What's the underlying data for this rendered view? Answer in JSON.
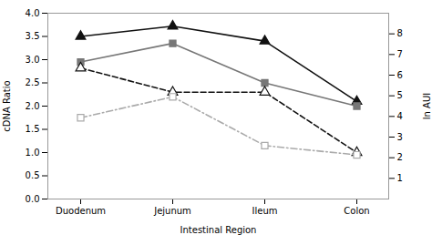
{
  "chart_data": {
    "type": "line",
    "categories": [
      "Duodenum",
      "Jejunum",
      "Ileum",
      "Colon"
    ],
    "series": [
      {
        "color": "#111111",
        "values": [
          3.5,
          3.72,
          3.4,
          2.1
        ],
        "marker": "triangle",
        "line_style": "solid"
      },
      {
        "color": "#777777",
        "values": [
          2.95,
          3.35,
          2.5,
          2.0
        ],
        "marker": "square",
        "line_style": "solid"
      },
      {
        "color": "#111111",
        "values": [
          2.82,
          2.3,
          2.3,
          1.0
        ],
        "marker": "triangle-open",
        "line_style": "dashed"
      },
      {
        "color": "#aaaaaa",
        "values": [
          1.75,
          2.2,
          1.15,
          0.95
        ],
        "marker": "square-open",
        "line_style": "dashdot"
      }
    ],
    "xlabel": "Intestinal Region",
    "ylabel": "cDNA Ratio",
    "y2label": "ln AUI",
    "ylim": [
      0.0,
      4.0
    ],
    "yticks": [
      {
        "value": 0.0,
        "label": "0.0"
      },
      0.5,
      {
        "value": 1.0,
        "label": "1.0"
      },
      1.5,
      {
        "value": 2.0,
        "label": "2.0"
      },
      2.5,
      {
        "value": 3.0,
        "label": "3.0"
      },
      3.5,
      {
        "value": 4.0,
        "label": "4.0"
      }
    ],
    "y2lim": [
      0,
      9
    ],
    "y2ticks": [
      1,
      2,
      3,
      4,
      5,
      6,
      7,
      8
    ],
    "grid": false
  }
}
